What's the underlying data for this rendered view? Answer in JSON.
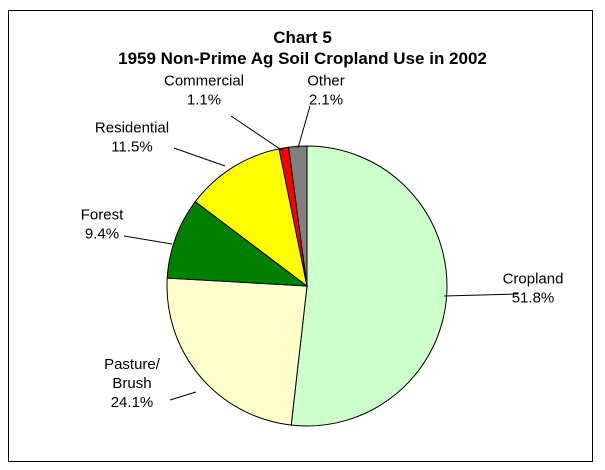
{
  "chart_data": {
    "type": "pie",
    "title": "Chart 5",
    "subtitle": "1959 Non-Prime Ag Soil Cropland Use in 2002",
    "start_angle_deg": 0,
    "direction": "clockwise",
    "legend": "none",
    "slices": [
      {
        "label": "Cropland",
        "value": 51.8,
        "value_label": "51.8%",
        "color": "#ccffcc"
      },
      {
        "label": "Pasture/ Brush",
        "label_lines": [
          "Pasture/",
          "Brush"
        ],
        "value": 24.1,
        "value_label": "24.1%",
        "color": "#ffffcc"
      },
      {
        "label": "Forest",
        "value": 9.4,
        "value_label": "9.4%",
        "color": "#008000"
      },
      {
        "label": "Residential",
        "value": 11.5,
        "value_label": "11.5%",
        "color": "#ffff00"
      },
      {
        "label": "Commercial",
        "value": 1.1,
        "value_label": "1.1%",
        "color": "#ff0000"
      },
      {
        "label": "Other",
        "value": 2.1,
        "value_label": "2.1%",
        "color": "#808080"
      }
    ]
  }
}
